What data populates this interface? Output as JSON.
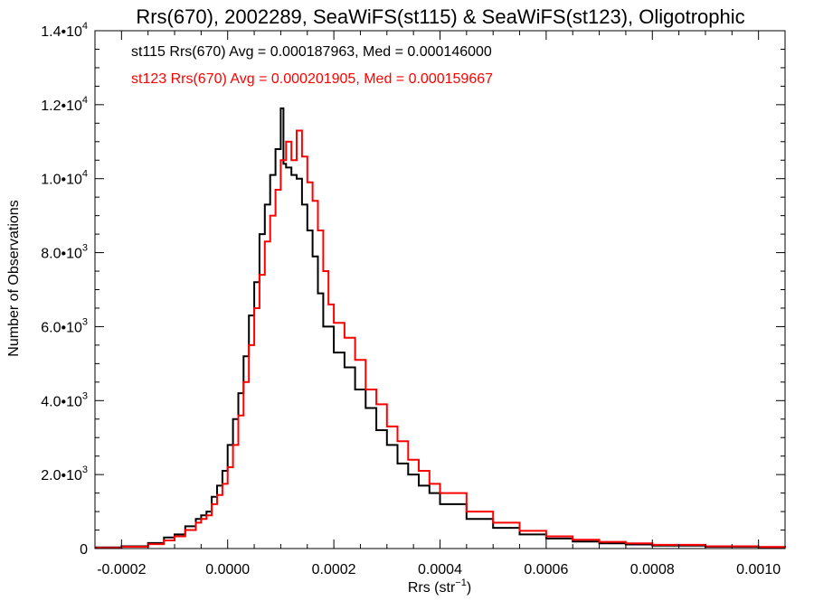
{
  "chart_data": {
    "type": "line",
    "title": "Rrs(670), 2002289, SeaWiFS(st115) & SeaWiFS(st123), Oligotrophic",
    "xlabel": "Rrs (str",
    "xlabel_sup": "−1",
    "xlabel_close": ")",
    "ylabel": "Number of Observations",
    "xlim": [
      -0.00025,
      0.00105
    ],
    "ylim": [
      0,
      14000
    ],
    "x_ticks": [
      {
        "value": -0.0002,
        "label": "-0.0002"
      },
      {
        "value": 0.0,
        "label": "0.0000"
      },
      {
        "value": 0.0002,
        "label": "0.0002"
      },
      {
        "value": 0.0004,
        "label": "0.0004"
      },
      {
        "value": 0.0006,
        "label": "0.0006"
      },
      {
        "value": 0.0008,
        "label": "0.0008"
      },
      {
        "value": 0.001,
        "label": "0.0010"
      }
    ],
    "y_ticks": [
      {
        "value": 0,
        "mant": "0",
        "exp": ""
      },
      {
        "value": 2000,
        "mant": "2.0•10",
        "exp": "3"
      },
      {
        "value": 4000,
        "mant": "4.0•10",
        "exp": "3"
      },
      {
        "value": 6000,
        "mant": "6.0•10",
        "exp": "3"
      },
      {
        "value": 8000,
        "mant": "8.0•10",
        "exp": "3"
      },
      {
        "value": 10000,
        "mant": "1.0•10",
        "exp": "4"
      },
      {
        "value": 12000,
        "mant": "1.2•10",
        "exp": "4"
      },
      {
        "value": 14000,
        "mant": "1.4•10",
        "exp": "4"
      }
    ],
    "legend": [
      {
        "text": "st115 Rrs(670) Avg = 0.000187963, Med = 0.000146000",
        "color": "#000000"
      },
      {
        "text": "st123 Rrs(670) Avg = 0.000201905, Med = 0.000159667",
        "color": "#ff0000"
      }
    ],
    "legend_placement": "top-left",
    "grid": false,
    "series": [
      {
        "color": "#000000",
        "step": "histogram",
        "points": [
          [
            -0.00025,
            30
          ],
          [
            -0.0002,
            60
          ],
          [
            -0.00015,
            150
          ],
          [
            -0.00012,
            300
          ],
          [
            -0.0001,
            380
          ],
          [
            -8e-05,
            600
          ],
          [
            -6e-05,
            800
          ],
          [
            -5e-05,
            900
          ],
          [
            -4e-05,
            1000
          ],
          [
            -3e-05,
            1400
          ],
          [
            -2e-05,
            1700
          ],
          [
            -1e-05,
            2100
          ],
          [
            0.0,
            2800
          ],
          [
            1e-05,
            3500
          ],
          [
            2e-05,
            4200
          ],
          [
            3e-05,
            5200
          ],
          [
            4e-05,
            6300
          ],
          [
            5e-05,
            7200
          ],
          [
            6e-05,
            8500
          ],
          [
            7e-05,
            9300
          ],
          [
            8e-05,
            10100
          ],
          [
            9e-05,
            10800
          ],
          [
            0.0001,
            11900
          ],
          [
            0.000105,
            10400
          ],
          [
            0.00011,
            10300
          ],
          [
            0.00012,
            10100
          ],
          [
            0.00013,
            10000
          ],
          [
            0.00014,
            9300
          ],
          [
            0.00015,
            8600
          ],
          [
            0.00016,
            7900
          ],
          [
            0.00017,
            6900
          ],
          [
            0.00018,
            6000
          ],
          [
            0.0002,
            5300
          ],
          [
            0.00022,
            4900
          ],
          [
            0.00024,
            4300
          ],
          [
            0.00026,
            3800
          ],
          [
            0.00028,
            3200
          ],
          [
            0.0003,
            2800
          ],
          [
            0.00032,
            2300
          ],
          [
            0.00034,
            2000
          ],
          [
            0.00036,
            1700
          ],
          [
            0.00038,
            1500
          ],
          [
            0.0004,
            1200
          ],
          [
            0.00045,
            800
          ],
          [
            0.0005,
            560
          ],
          [
            0.00055,
            380
          ],
          [
            0.0006,
            270
          ],
          [
            0.00065,
            190
          ],
          [
            0.0007,
            140
          ],
          [
            0.00075,
            110
          ],
          [
            0.0008,
            80
          ],
          [
            0.0009,
            50
          ],
          [
            0.001,
            40
          ],
          [
            0.00105,
            30
          ]
        ]
      },
      {
        "color": "#ff0000",
        "step": "histogram",
        "points": [
          [
            -0.00025,
            20
          ],
          [
            -0.0002,
            50
          ],
          [
            -0.00015,
            120
          ],
          [
            -0.00012,
            220
          ],
          [
            -0.0001,
            330
          ],
          [
            -8e-05,
            500
          ],
          [
            -6e-05,
            700
          ],
          [
            -5e-05,
            800
          ],
          [
            -4e-05,
            900
          ],
          [
            -3e-05,
            1200
          ],
          [
            -2e-05,
            1450
          ],
          [
            -1e-05,
            1750
          ],
          [
            0.0,
            2200
          ],
          [
            1e-05,
            2800
          ],
          [
            2e-05,
            3600
          ],
          [
            3e-05,
            4500
          ],
          [
            4e-05,
            5500
          ],
          [
            5e-05,
            6500
          ],
          [
            6e-05,
            7400
          ],
          [
            7e-05,
            8300
          ],
          [
            8e-05,
            9000
          ],
          [
            9e-05,
            9700
          ],
          [
            0.0001,
            10500
          ],
          [
            0.00011,
            11000
          ],
          [
            0.00012,
            10500
          ],
          [
            0.00013,
            11300
          ],
          [
            0.00014,
            10600
          ],
          [
            0.00015,
            9900
          ],
          [
            0.00016,
            9400
          ],
          [
            0.00017,
            8600
          ],
          [
            0.00018,
            7500
          ],
          [
            0.00019,
            6600
          ],
          [
            0.0002,
            6100
          ],
          [
            0.00022,
            5700
          ],
          [
            0.00024,
            5100
          ],
          [
            0.00026,
            4300
          ],
          [
            0.00028,
            3900
          ],
          [
            0.0003,
            3300
          ],
          [
            0.00032,
            2900
          ],
          [
            0.00034,
            2400
          ],
          [
            0.00036,
            2100
          ],
          [
            0.00038,
            1750
          ],
          [
            0.0004,
            1500
          ],
          [
            0.00045,
            1000
          ],
          [
            0.0005,
            700
          ],
          [
            0.00055,
            480
          ],
          [
            0.0006,
            330
          ],
          [
            0.00065,
            240
          ],
          [
            0.0007,
            180
          ],
          [
            0.00075,
            140
          ],
          [
            0.0008,
            100
          ],
          [
            0.0009,
            60
          ],
          [
            0.001,
            45
          ],
          [
            0.00105,
            30
          ]
        ]
      }
    ]
  }
}
